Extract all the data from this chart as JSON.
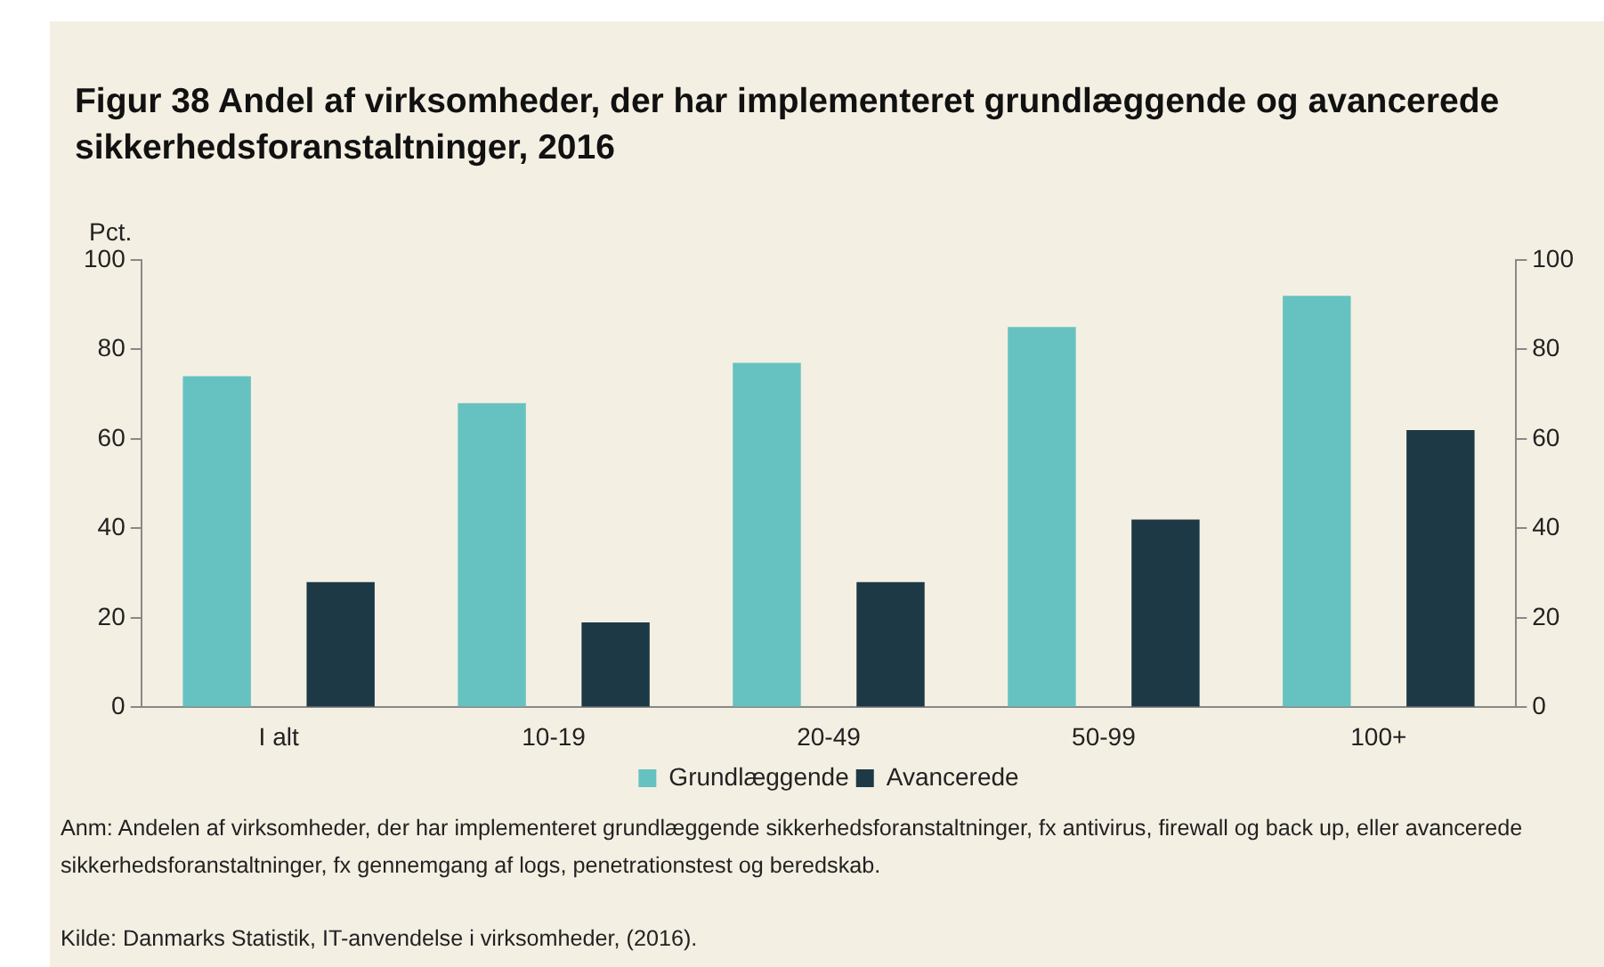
{
  "chart_data": {
    "type": "bar",
    "title": "Figur 38 Andel af virksomheder, der har implementeret grundlæggende og avancerede sikkerhedsforanstaltninger, 2016",
    "ylabel": "Pct.",
    "categories": [
      "I alt",
      "10-19",
      "20-49",
      "50-99",
      "100+"
    ],
    "series": [
      {
        "name": "Grundlæggende",
        "color": "#66c2c0",
        "values": [
          74,
          68,
          77,
          85,
          92
        ]
      },
      {
        "name": "Avancerede",
        "color": "#1d3945",
        "values": [
          28,
          19,
          28,
          42,
          62
        ]
      }
    ],
    "ylim": [
      0,
      100
    ],
    "yticks": [
      0,
      20,
      40,
      60,
      80,
      100
    ],
    "y2lim": [
      0,
      100
    ],
    "y2ticks": [
      0,
      20,
      40,
      60,
      80,
      100
    ],
    "grid": false,
    "legend": "bottom",
    "annotations": [
      "Anm: Andelen af virksomheder, der har implementeret grundlæggende sikkerhedsforanstaltninger, fx antivirus, firewall og back up, eller avancerede sikkerhedsforanstaltninger, fx gennemgang af logs, penetrationstest og beredskab.",
      "Kilde: Danmarks Statistik, IT-anvendelse i virksomheder, (2016)."
    ]
  }
}
